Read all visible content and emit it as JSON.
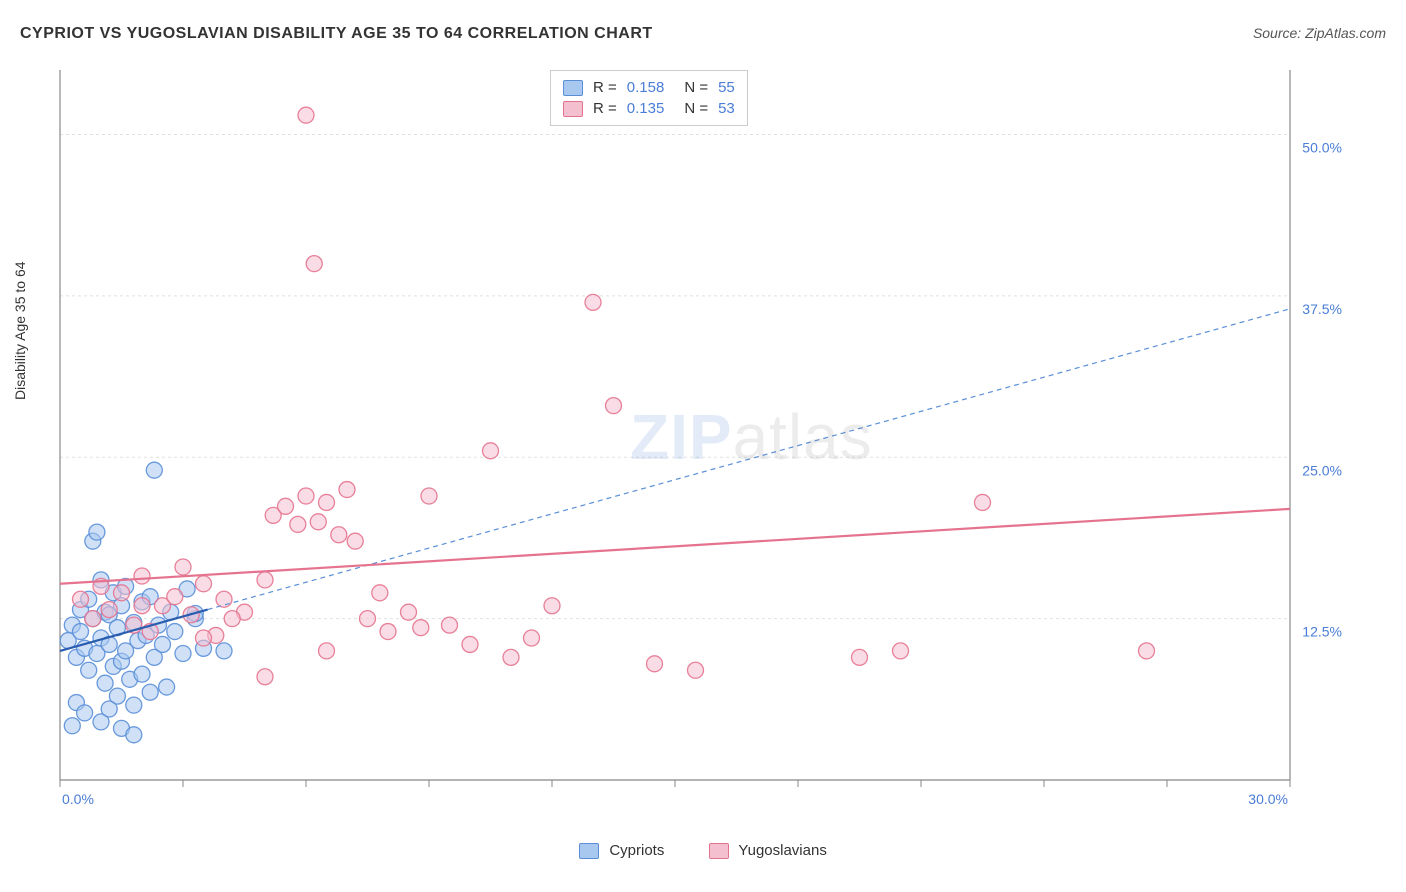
{
  "title": "CYPRIOT VS YUGOSLAVIAN DISABILITY AGE 35 TO 64 CORRELATION CHART",
  "source_prefix": "Source: ",
  "source_name": "ZipAtlas.com",
  "ylabel": "Disability Age 35 to 64",
  "watermark_a": "ZIP",
  "watermark_b": "atlas",
  "chart": {
    "type": "scatter",
    "background_color": "#ffffff",
    "grid_color": "#e1e1e1",
    "axis_color": "#888888",
    "tick_label_color": "#4a7dd6",
    "xlim": [
      0,
      30
    ],
    "ylim": [
      0,
      55
    ],
    "x_ticks": [
      0,
      3,
      6,
      9,
      12,
      15,
      18,
      21,
      24,
      27,
      30
    ],
    "x_tick_labels": {
      "0": "0.0%",
      "30": "30.0%"
    },
    "y_gridlines": [
      12.5,
      25.0,
      37.5,
      50.0
    ],
    "y_tick_labels": [
      "12.5%",
      "25.0%",
      "37.5%",
      "50.0%"
    ],
    "marker_radius": 8,
    "marker_opacity": 0.55,
    "series": [
      {
        "name": "Cypriots",
        "color_fill": "#a9c8f0",
        "color_stroke": "#5a8fd8",
        "R": 0.158,
        "N": 55,
        "trend_line": {
          "x1": 0,
          "y1": 10.0,
          "x2": 3.6,
          "y2": 13.2,
          "stroke": "#2a5db0",
          "width": 2.2,
          "dash": "none"
        },
        "trend_extrapolation": {
          "x1": 3.6,
          "y1": 13.2,
          "x2": 30,
          "y2": 36.5,
          "stroke": "#5a8fd8",
          "width": 1.2,
          "dash": "5,4"
        },
        "points": [
          [
            0.2,
            10.8
          ],
          [
            0.3,
            12.0
          ],
          [
            0.4,
            9.5
          ],
          [
            0.5,
            11.5
          ],
          [
            0.5,
            13.2
          ],
          [
            0.6,
            10.2
          ],
          [
            0.7,
            14.0
          ],
          [
            0.7,
            8.5
          ],
          [
            0.8,
            12.5
          ],
          [
            0.8,
            18.5
          ],
          [
            0.9,
            19.2
          ],
          [
            0.9,
            9.8
          ],
          [
            1.0,
            11.0
          ],
          [
            1.0,
            15.5
          ],
          [
            1.1,
            13.0
          ],
          [
            1.1,
            7.5
          ],
          [
            1.2,
            10.5
          ],
          [
            1.2,
            12.8
          ],
          [
            1.3,
            8.8
          ],
          [
            1.3,
            14.5
          ],
          [
            1.4,
            6.5
          ],
          [
            1.4,
            11.8
          ],
          [
            1.5,
            9.2
          ],
          [
            1.5,
            13.5
          ],
          [
            1.6,
            10.0
          ],
          [
            1.6,
            15.0
          ],
          [
            1.7,
            7.8
          ],
          [
            1.8,
            12.2
          ],
          [
            1.8,
            5.8
          ],
          [
            1.9,
            10.8
          ],
          [
            2.0,
            8.2
          ],
          [
            2.0,
            13.8
          ],
          [
            2.1,
            11.2
          ],
          [
            2.2,
            6.8
          ],
          [
            2.2,
            14.2
          ],
          [
            2.3,
            9.5
          ],
          [
            2.4,
            12.0
          ],
          [
            2.5,
            10.5
          ],
          [
            2.6,
            7.2
          ],
          [
            2.7,
            13.0
          ],
          [
            2.8,
            11.5
          ],
          [
            3.0,
            9.8
          ],
          [
            3.1,
            14.8
          ],
          [
            3.3,
            12.5
          ],
          [
            3.5,
            10.2
          ],
          [
            0.4,
            6.0
          ],
          [
            0.6,
            5.2
          ],
          [
            1.0,
            4.5
          ],
          [
            1.2,
            5.5
          ],
          [
            1.5,
            4.0
          ],
          [
            1.8,
            3.5
          ],
          [
            0.3,
            4.2
          ],
          [
            2.3,
            24.0
          ],
          [
            3.3,
            12.9
          ],
          [
            4.0,
            10.0
          ]
        ]
      },
      {
        "name": "Yugoslavians",
        "color_fill": "#f4c0cf",
        "color_stroke": "#e5738f",
        "R": 0.135,
        "N": 53,
        "trend_line": {
          "x1": 0,
          "y1": 15.2,
          "x2": 30,
          "y2": 21.0,
          "stroke": "#e5738f",
          "width": 2.2,
          "dash": "none"
        },
        "points": [
          [
            0.5,
            14.0
          ],
          [
            0.8,
            12.5
          ],
          [
            1.0,
            15.0
          ],
          [
            1.2,
            13.2
          ],
          [
            1.5,
            14.5
          ],
          [
            1.8,
            12.0
          ],
          [
            2.0,
            15.8
          ],
          [
            2.2,
            11.5
          ],
          [
            2.5,
            13.5
          ],
          [
            2.8,
            14.2
          ],
          [
            3.0,
            16.5
          ],
          [
            3.2,
            12.8
          ],
          [
            3.5,
            15.2
          ],
          [
            3.8,
            11.2
          ],
          [
            4.0,
            14.0
          ],
          [
            4.5,
            13.0
          ],
          [
            5.0,
            15.5
          ],
          [
            5.2,
            20.5
          ],
          [
            5.5,
            21.2
          ],
          [
            5.8,
            19.8
          ],
          [
            6.0,
            22.0
          ],
          [
            6.3,
            20.0
          ],
          [
            6.5,
            21.5
          ],
          [
            6.8,
            19.0
          ],
          [
            7.0,
            22.5
          ],
          [
            7.2,
            18.5
          ],
          [
            6.0,
            51.5
          ],
          [
            6.2,
            40.0
          ],
          [
            6.5,
            10.0
          ],
          [
            7.5,
            12.5
          ],
          [
            8.0,
            11.5
          ],
          [
            8.5,
            13.0
          ],
          [
            9.0,
            22.0
          ],
          [
            9.5,
            12.0
          ],
          [
            10.0,
            10.5
          ],
          [
            10.5,
            25.5
          ],
          [
            11.0,
            9.5
          ],
          [
            11.5,
            11.0
          ],
          [
            12.0,
            13.5
          ],
          [
            13.0,
            37.0
          ],
          [
            13.5,
            29.0
          ],
          [
            14.5,
            9.0
          ],
          [
            15.5,
            8.5
          ],
          [
            19.5,
            9.5
          ],
          [
            20.5,
            10.0
          ],
          [
            22.5,
            21.5
          ],
          [
            26.5,
            10.0
          ],
          [
            3.5,
            11.0
          ],
          [
            4.2,
            12.5
          ],
          [
            5.0,
            8.0
          ],
          [
            7.8,
            14.5
          ],
          [
            8.8,
            11.8
          ],
          [
            2.0,
            13.5
          ]
        ]
      }
    ]
  },
  "bottom_legend": [
    {
      "label": "Cypriots",
      "fill": "#a9c8f0",
      "stroke": "#5a8fd8"
    },
    {
      "label": "Yugoslavians",
      "fill": "#f4c0cf",
      "stroke": "#e5738f"
    }
  ],
  "top_legend_label_R": "R =",
  "top_legend_label_N": "N ="
}
